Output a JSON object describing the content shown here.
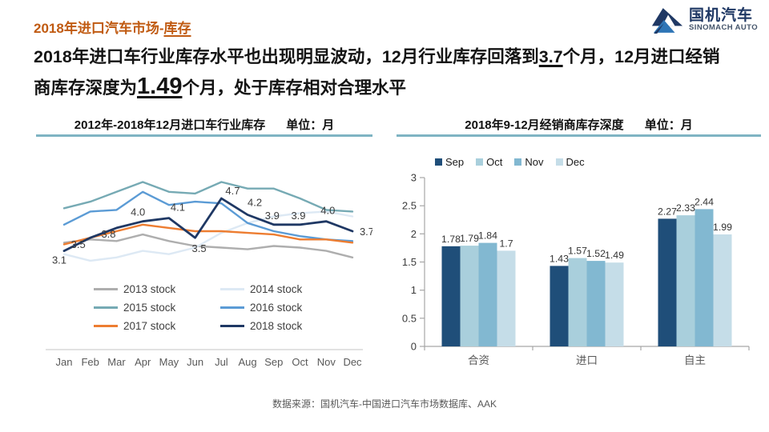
{
  "page": {
    "kicker": {
      "prefix": "2018年进口汽车市场-",
      "emphasis": "库存"
    },
    "headline_segments": [
      {
        "text": "2018年进口车行业库存水平也出现明显波动，12月行业库存回落到",
        "style": "normal"
      },
      {
        "text": "3.7",
        "style": "underline"
      },
      {
        "text": "个月，12月进口经销商库存深度为",
        "style": "normal"
      },
      {
        "text": "1.49",
        "style": "underline-large"
      },
      {
        "text": "个月，处于库存相对合理水平",
        "style": "normal"
      }
    ],
    "footer": "数据来源：国机汽车-中国进口汽车市场数据库、AAK"
  },
  "logo": {
    "icon": "mountain-logo-icon",
    "name_cn": "国机汽车",
    "name_en": "SINOMACH AUTO",
    "color_primary": "#1f3864",
    "color_accent": "#2e75b6"
  },
  "colors": {
    "kicker_orange": "#c05a11",
    "title_rule_teal": "#7fb4c3",
    "axis_gray": "#a6a6a6",
    "tick_text": "#595959",
    "label_text": "#3b3b3b"
  },
  "chart_data": [
    {
      "type": "line",
      "title": "2012年-2018年12月进口车行业库存",
      "unit_label": "单位：月",
      "x": [
        "Jan",
        "Feb",
        "Mar",
        "Apr",
        "May",
        "Jun",
        "Jul",
        "Aug",
        "Sep",
        "Oct",
        "Nov",
        "Dec"
      ],
      "series": [
        {
          "name": "2013 stock",
          "color": "#aeaeae",
          "values": [
            3.35,
            3.45,
            3.4,
            3.6,
            3.4,
            3.25,
            3.2,
            3.15,
            3.25,
            3.2,
            3.1,
            2.9
          ]
        },
        {
          "name": "2014 stock",
          "color": "#dde9f4",
          "values": [
            3.0,
            2.8,
            2.9,
            3.1,
            3.0,
            3.2,
            3.65,
            3.95,
            4.15,
            4.25,
            4.3,
            4.15
          ]
        },
        {
          "name": "2015 stock",
          "color": "#76aab4",
          "values": [
            4.4,
            4.6,
            4.9,
            5.2,
            4.9,
            4.85,
            5.2,
            5.0,
            5.0,
            4.7,
            4.35,
            4.3
          ]
        },
        {
          "name": "2016 stock",
          "color": "#5b9bd5",
          "values": [
            3.9,
            4.3,
            4.35,
            4.9,
            4.5,
            4.6,
            4.55,
            3.95,
            3.7,
            3.55,
            3.45,
            3.4
          ]
        },
        {
          "name": "2017 stock",
          "color": "#ed7d31",
          "values": [
            3.3,
            3.5,
            3.7,
            3.9,
            3.8,
            3.7,
            3.7,
            3.65,
            3.6,
            3.45,
            3.45,
            3.35
          ]
        },
        {
          "name": "2018 stock",
          "color": "#1f3864",
          "values": [
            3.1,
            3.5,
            3.8,
            4.0,
            4.1,
            3.5,
            4.7,
            4.2,
            3.9,
            3.9,
            4.0,
            3.7
          ],
          "show_labels": true
        }
      ],
      "ylim": [
        2.6,
        5.5
      ],
      "grid": false,
      "legend_position": "bottom"
    },
    {
      "type": "bar",
      "title": "2018年9-12月经销商库存深度",
      "unit_label": "单位：月",
      "categories": [
        "合资",
        "进口",
        "自主"
      ],
      "series": [
        {
          "name": "Sep",
          "color": "#1f4e79",
          "values": [
            1.78,
            1.43,
            2.27
          ]
        },
        {
          "name": "Oct",
          "color": "#a9cfdc",
          "values": [
            1.79,
            1.57,
            2.33
          ]
        },
        {
          "name": "Nov",
          "color": "#82b8d1",
          "values": [
            1.84,
            1.52,
            2.44
          ]
        },
        {
          "name": "Dec",
          "color": "#c5dde8",
          "values": [
            1.7,
            1.49,
            1.99
          ]
        }
      ],
      "ylim": [
        0,
        3
      ],
      "yticks": [
        "0",
        "0.5",
        "1",
        "1.5",
        "2",
        "2.5",
        "3"
      ],
      "grid": false,
      "legend_position": "top"
    }
  ]
}
